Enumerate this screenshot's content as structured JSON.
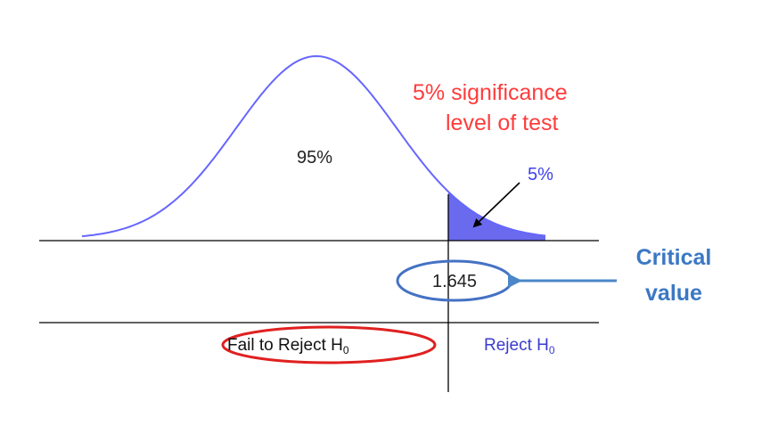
{
  "labels": {
    "central_area": "95%",
    "significance_line1": "5% significance",
    "significance_line2": "level of test",
    "tail_area": "5%",
    "critical_value_number": "1.645",
    "critical_value_line1": "Critical",
    "critical_value_line2": "value",
    "fail_region_text": "Fail to Reject H",
    "reject_region_text": "Reject H",
    "h_subscript": "0"
  },
  "values": {
    "critical_z": 1.645,
    "central_fraction": 0.95,
    "tail_fraction": 0.05
  },
  "colors": {
    "curve": "#6666ff",
    "tail_fill": "#6a6aee",
    "significance_text": "#ff3c3c",
    "tail_label": "#4040ee",
    "critical_label": "#3b78c4",
    "ellipse_highlight": "#4472c4",
    "fail_ellipse": "#e02020",
    "reject_text": "#3a3ad0",
    "axis": "#000000"
  }
}
